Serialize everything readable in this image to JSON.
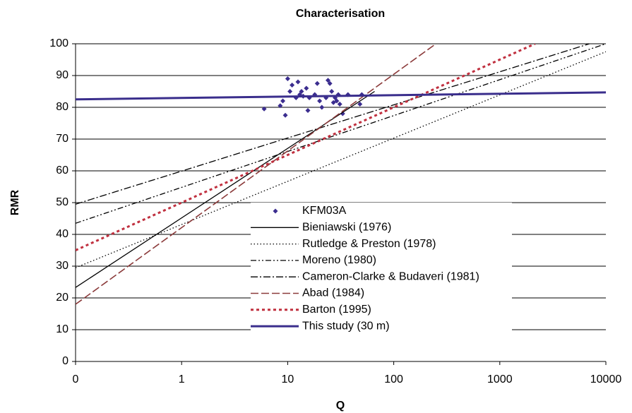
{
  "chart_data": {
    "type": "line",
    "title": "Characterisation",
    "xlabel": "Q",
    "ylabel": "RMR",
    "xscale": "log",
    "xlim": [
      0.1,
      10000
    ],
    "xticks": [
      {
        "value": 0.1,
        "label": "0"
      },
      1,
      10,
      100,
      1000,
      10000
    ],
    "ylim": [
      0,
      100
    ],
    "yticks": [
      0,
      10,
      20,
      30,
      40,
      50,
      60,
      70,
      80,
      90,
      100
    ],
    "grid": true,
    "legend": "center",
    "series": [
      {
        "name": "KFM03A",
        "type": "scatter",
        "marker": "diamond",
        "color": "#3b2d8f",
        "x": [
          6,
          8.5,
          9,
          9.5,
          10,
          10.5,
          11,
          12,
          12.5,
          13,
          13.5,
          14,
          15,
          15.5,
          16,
          18,
          19,
          20,
          21,
          23,
          24,
          25,
          26,
          27,
          28,
          29,
          30,
          31,
          33,
          37,
          48,
          50
        ],
        "values": [
          79.5,
          80.5,
          82,
          77.5,
          89,
          85,
          87,
          83,
          88,
          84,
          85,
          83.5,
          86,
          79,
          83,
          84,
          87.5,
          82,
          80,
          83,
          88.5,
          87.5,
          85,
          81.5,
          83,
          82,
          84,
          81,
          78,
          84,
          81,
          84
        ]
      },
      {
        "name": "Bieniawski (1976)",
        "dash": "solid",
        "color": "#000000",
        "x": [
          0.1,
          66
        ],
        "values": [
          23.3,
          85
        ]
      },
      {
        "name": "Rutledge & Preston (1978)",
        "dash": "dotted",
        "color": "#000000",
        "x": [
          0.1,
          10000
        ],
        "values": [
          29.5,
          97.5
        ]
      },
      {
        "name": "Moreno (1980)",
        "dash": "dashdotdot",
        "color": "#000000",
        "x": [
          0.1,
          10000
        ],
        "values": [
          43.5,
          100
        ]
      },
      {
        "name": "Cameron-Clarke & Budaveri (1981)",
        "dash": "dashdot",
        "color": "#000000",
        "x": [
          0.1,
          7000
        ],
        "values": [
          49.5,
          100
        ]
      },
      {
        "name": "Abad (1984)",
        "dash": "dashed",
        "color": "#8b3a3a",
        "x": [
          0.1,
          250
        ],
        "values": [
          18,
          100
        ]
      },
      {
        "name": "Barton (1995)",
        "dash": "reddotted",
        "color": "#c0303f",
        "x": [
          0.1,
          2150
        ],
        "values": [
          35,
          100
        ]
      },
      {
        "name": "This study (30 m)",
        "dash": "thick",
        "color": "#3a2e8c",
        "x": [
          0.1,
          10000
        ],
        "values": [
          82.5,
          84.7
        ]
      }
    ]
  }
}
